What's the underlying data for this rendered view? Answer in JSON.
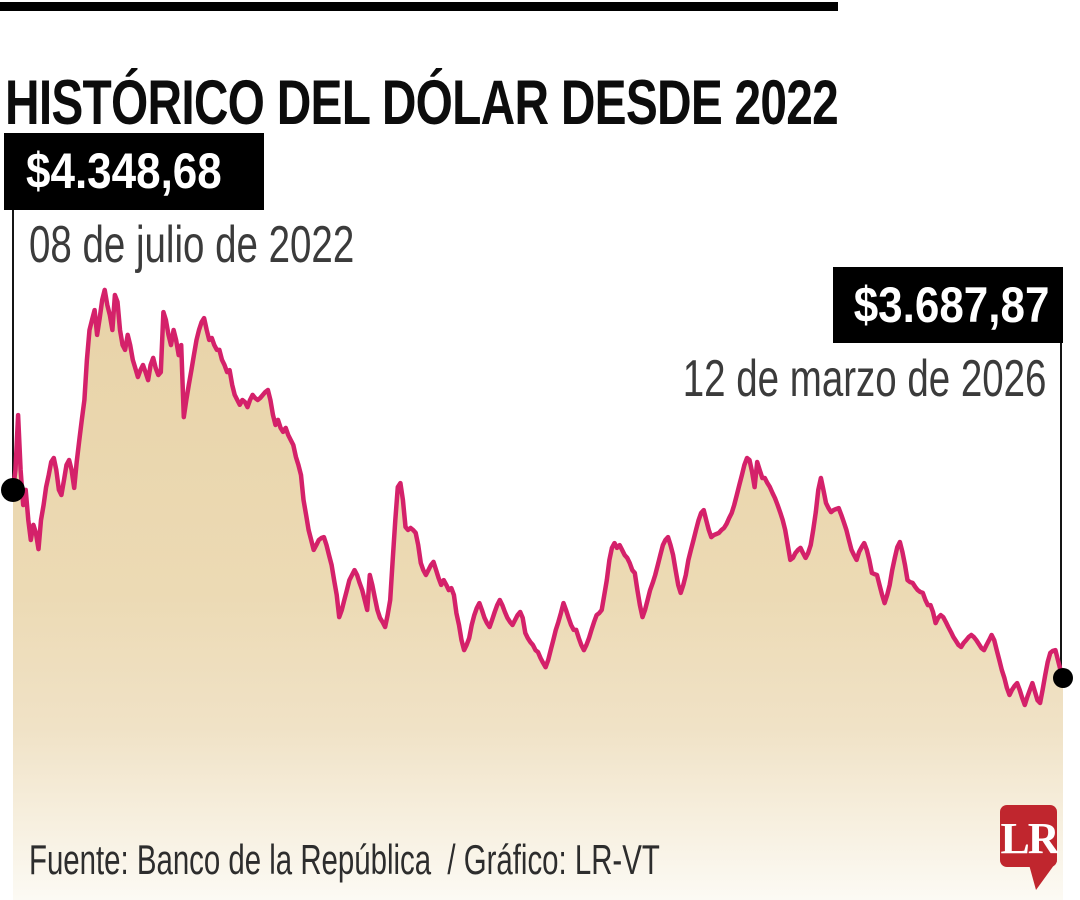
{
  "header": {
    "title": "HISTÓRICO DEL DÓLAR DESDE 2022"
  },
  "annotations": {
    "start": {
      "value_label": "$4.348,68",
      "date_label": "08 de julio de 2022"
    },
    "end": {
      "value_label": "$3.687,87",
      "date_label": "12 de marzo de 2026"
    }
  },
  "footer": {
    "source_credit": "Fuente: Banco de la República  / Gráfico: LR-VT",
    "logo_text": "LR"
  },
  "colors": {
    "line": "#d4216a",
    "area_top": "#e8d3a8",
    "area_mid": "#ecdab4",
    "area_bottom": "#fcfaf4",
    "accent_black": "#000000",
    "annotation_text": "#3b3b3b",
    "logo_red": "#c0262e",
    "dot": "#000000"
  },
  "chart_data": {
    "type": "area",
    "title": "HISTÓRICO DEL DÓLAR DESDE 2022",
    "xlabel": "",
    "ylabel": "",
    "grid": false,
    "legend": false,
    "currency_prefix": "$",
    "x_range": {
      "start_label": "08 de julio de 2022",
      "end_label": "12 de marzo de 2026"
    },
    "start_point": {
      "date_label": "08 de julio de 2022",
      "value": 4348.68,
      "label": "$4.348,68"
    },
    "end_point": {
      "date_label": "12 de marzo de 2026",
      "value": 3687.87,
      "label": "$3.687,87"
    },
    "y_implied_range": [
      3550,
      5100
    ],
    "series": [
      {
        "name": "dolar",
        "values": [
          4348.68,
          4420,
          4612,
          4419,
          4296,
          4349,
          4243,
          4173,
          4226,
          4198,
          4141,
          4243,
          4296,
          4359,
          4401,
          4447,
          4461,
          4419,
          4349,
          4331,
          4384,
          4437,
          4454,
          4419,
          4356,
          4447,
          4524,
          4595,
          4665,
          4806,
          4911,
          4946,
          4981,
          4894,
          4953,
          5017,
          5052,
          4999,
          4964,
          4911,
          5034,
          5010,
          4911,
          4858,
          4841,
          4894,
          4858,
          4806,
          4777,
          4746,
          4770,
          4788,
          4763,
          4735,
          4788,
          4813,
          4777,
          4753,
          4763,
          4974,
          4946,
          4894,
          4858,
          4911,
          4876,
          4823,
          4858,
          4605,
          4665,
          4718,
          4770,
          4823,
          4876,
          4911,
          4939,
          4953,
          4911,
          4876,
          4883,
          4858,
          4841,
          4841,
          4806,
          4788,
          4763,
          4770,
          4718,
          4683,
          4665,
          4648,
          4665,
          4658,
          4640,
          4665,
          4683,
          4672,
          4665,
          4672,
          4683,
          4693,
          4700,
          4665,
          4612,
          4577,
          4595,
          4567,
          4553,
          4567,
          4542,
          4524,
          4507,
          4465,
          4437,
          4401,
          4314,
          4261,
          4208,
          4173,
          4138,
          4155,
          4173,
          4180,
          4183,
          4155,
          4120,
          4085,
          4032,
          3980,
          3902,
          3927,
          3962,
          3997,
          4032,
          4050,
          4067,
          4050,
          4022,
          3997,
          3962,
          3927,
          4050,
          4015,
          3969,
          3927,
          3899,
          3885,
          3867,
          3909,
          3962,
          4103,
          4243,
          4359,
          4373,
          4314,
          4219,
          4208,
          4215,
          4208,
          4198,
          4155,
          4092,
          4067,
          4050,
          4067,
          4085,
          4096,
          4067,
          4039,
          4015,
          4032,
          4015,
          3997,
          4004,
          3980,
          3916,
          3874,
          3821,
          3786,
          3804,
          3828,
          3874,
          3909,
          3934,
          3951,
          3927,
          3899,
          3881,
          3867,
          3892,
          3920,
          3944,
          3962,
          3944,
          3920,
          3899,
          3885,
          3874,
          3892,
          3909,
          3920,
          3899,
          3846,
          3828,
          3814,
          3804,
          3786,
          3779,
          3758,
          3741,
          3726,
          3751,
          3786,
          3821,
          3857,
          3885,
          3916,
          3951,
          3927,
          3899,
          3874,
          3857,
          3857,
          3828,
          3804,
          3786,
          3804,
          3828,
          3857,
          3885,
          3909,
          3916,
          3927,
          3980,
          4032,
          4103,
          4145,
          4162,
          4145,
          4155,
          4138,
          4120,
          4110,
          4092,
          4067,
          4057,
          3997,
          3944,
          3902,
          3927,
          3962,
          3997,
          4022,
          4050,
          4085,
          4120,
          4155,
          4173,
          4183,
          4155,
          4120,
          4067,
          4015,
          3987,
          4015,
          4050,
          4103,
          4138,
          4173,
          4208,
          4243,
          4268,
          4278,
          4243,
          4208,
          4183,
          4190,
          4194,
          4198,
          4208,
          4215,
          4230,
          4250,
          4268,
          4296,
          4331,
          4366,
          4401,
          4437,
          4461,
          4454,
          4412,
          4359,
          4447,
          4419,
          4391,
          4391,
          4373,
          4359,
          4338,
          4320,
          4296,
          4271,
          4243,
          4208,
          4155,
          4103,
          4110,
          4127,
          4138,
          4145,
          4127,
          4110,
          4127,
          4155,
          4208,
          4271,
          4349,
          4391,
          4349,
          4303,
          4285,
          4271,
          4278,
          4282,
          4285,
          4261,
          4236,
          4208,
          4173,
          4138,
          4120,
          4103,
          4131,
          4148,
          4162,
          4138,
          4103,
          4057,
          4053,
          4050,
          4015,
          3980,
          3951,
          3980,
          4015,
          4067,
          4110,
          4148,
          4166,
          4131,
          4085,
          4032,
          4025,
          4022,
          4008,
          3997,
          3990,
          3987,
          3962,
          3944,
          3944,
          3920,
          3881,
          3899,
          3909,
          3902,
          3885,
          3867,
          3850,
          3832,
          3818,
          3804,
          3797,
          3811,
          3821,
          3832,
          3839,
          3832,
          3821,
          3807,
          3793,
          3786,
          3804,
          3821,
          3839,
          3821,
          3786,
          3751,
          3716,
          3688,
          3653,
          3628,
          3646,
          3660,
          3670,
          3646,
          3618,
          3593,
          3621,
          3646,
          3670,
          3639,
          3610,
          3600,
          3646,
          3698,
          3744,
          3776,
          3783,
          3786,
          3751,
          3716,
          3687.87
        ]
      }
    ]
  }
}
